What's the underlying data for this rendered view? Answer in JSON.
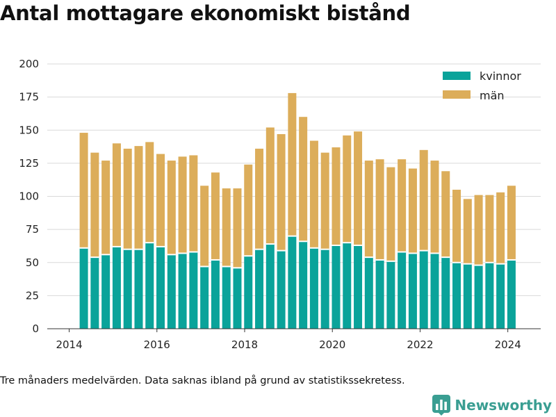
{
  "title": "Antal mottagare ekonomiskt bistånd",
  "footnote": "Tre månaders medelvärden. Data saknas ibland på grund av statistikssekretess.",
  "brand": {
    "name": "Newsworthy",
    "icon": "bar-chart-logo-icon"
  },
  "colors": {
    "kvinnor": "#0aa39a",
    "man": "#dcad5a",
    "axis": "#333333",
    "grid": "#d9d9d9"
  },
  "chart_data": {
    "type": "bar",
    "stacked": true,
    "x_ticks": [
      "2014",
      "2016",
      "2018",
      "2020",
      "2022",
      "2024"
    ],
    "y_ticks": [
      "0",
      "25",
      "50",
      "75",
      "100",
      "125",
      "150",
      "175",
      "200"
    ],
    "ylim": [
      0,
      200
    ],
    "legend": {
      "placement": "top-right",
      "entries": [
        "kvinnor",
        "män"
      ]
    },
    "grid": "horizontal",
    "x": [
      "2014-05",
      "2014-08",
      "2014-11",
      "2015-02",
      "2015-05",
      "2015-08",
      "2015-11",
      "2016-02",
      "2016-05",
      "2016-08",
      "2016-11",
      "2017-02",
      "2017-05",
      "2017-08",
      "2017-11",
      "2018-02",
      "2018-05",
      "2018-08",
      "2018-11",
      "2019-02",
      "2019-05",
      "2019-08",
      "2019-11",
      "2020-02",
      "2020-05",
      "2020-08",
      "2020-11",
      "2021-02",
      "2021-05",
      "2021-08",
      "2021-11",
      "2022-02",
      "2022-05",
      "2022-08",
      "2022-11",
      "2023-02",
      "2023-05",
      "2023-08",
      "2023-11",
      "2024-02"
    ],
    "series": [
      {
        "name": "kvinnor",
        "values": [
          61,
          54,
          56,
          62,
          60,
          60,
          65,
          62,
          56,
          57,
          58,
          47,
          52,
          47,
          46,
          55,
          60,
          64,
          59,
          70,
          66,
          61,
          60,
          63,
          65,
          63,
          54,
          52,
          51,
          58,
          57,
          59,
          57,
          54,
          50,
          49,
          48,
          50,
          49,
          52
        ]
      },
      {
        "name": "män",
        "values": [
          87,
          79,
          71,
          78,
          76,
          78,
          76,
          70,
          71,
          73,
          73,
          61,
          66,
          59,
          60,
          69,
          76,
          88,
          88,
          108,
          94,
          81,
          73,
          74,
          81,
          86,
          73,
          76,
          71,
          70,
          64,
          76,
          70,
          65,
          55,
          49,
          53,
          51,
          54,
          56
        ]
      }
    ]
  }
}
